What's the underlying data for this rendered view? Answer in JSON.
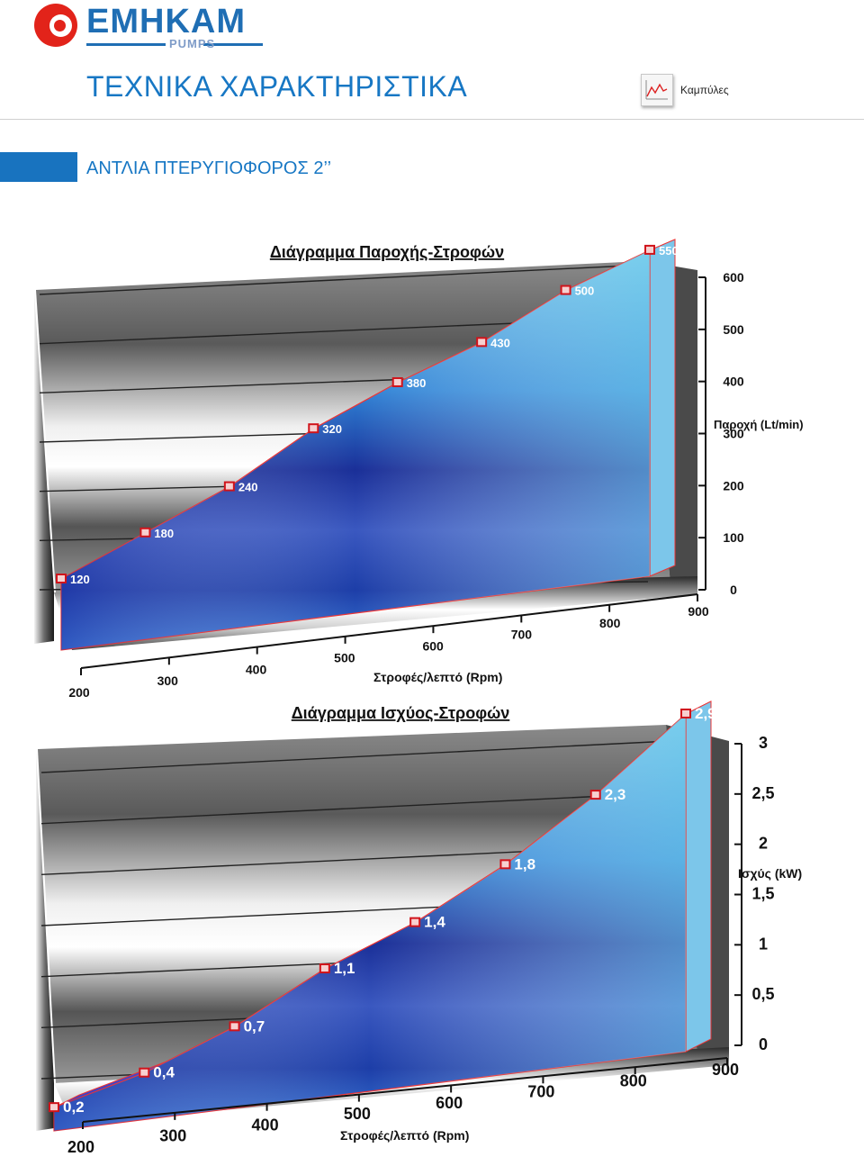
{
  "brand": {
    "name": "ΕΜΗΚΑΜ",
    "sub": "PUMPS",
    "red": "#e2231a",
    "blue": "#1f6eb4"
  },
  "header": {
    "title": "ΤΕΧΝΙΚΑ ΧΑΡΑΚΤΗΡΙΣΤΙΚΑ",
    "curves_label": "Καμπύλες",
    "curves_icon": "chart-icon"
  },
  "section": {
    "title": "ΑΝΤΛΙΑ ΠΤΕΡΥΓΙΟΦΟΡΟΣ 2’’"
  },
  "chart_data": [
    {
      "type": "area",
      "title": "Διάγραμμα Παροχής-Στροφών",
      "xlabel": "Στροφές/λεπτό (Rpm)",
      "ylabel": "Παροχή (Lt/min)",
      "x": [
        200,
        300,
        400,
        500,
        600,
        700,
        800,
        900
      ],
      "y": [
        120,
        180,
        240,
        320,
        380,
        430,
        500,
        550
      ],
      "data_labels": [
        "120",
        "180",
        "240",
        "320",
        "380",
        "430",
        "500",
        "550"
      ],
      "x_ticks": [
        "200",
        "300",
        "400",
        "500",
        "600",
        "700",
        "800",
        "900"
      ],
      "y_ticks": [
        "0",
        "100",
        "200",
        "300",
        "400",
        "500",
        "600"
      ],
      "ylim": [
        0,
        600
      ],
      "grid": true,
      "three_d": true
    },
    {
      "type": "area",
      "title": "Διάγραμμα Ισχύος-Στροφών",
      "xlabel": "Στροφές/λεπτό (Rpm)",
      "ylabel": "Ισχύς (kW)",
      "x": [
        200,
        300,
        400,
        500,
        600,
        700,
        800,
        900
      ],
      "y": [
        0.2,
        0.4,
        0.7,
        1.1,
        1.4,
        1.8,
        2.3,
        2.9
      ],
      "data_labels": [
        "0,2",
        "0,4",
        "0,7",
        "1,1",
        "1,4",
        "1,8",
        "2,3",
        "2,9"
      ],
      "x_ticks": [
        "200",
        "300",
        "400",
        "500",
        "600",
        "700",
        "800",
        "900"
      ],
      "y_ticks": [
        "0",
        "0,5",
        "1",
        "1,5",
        "2",
        "2,5",
        "3"
      ],
      "ylim": [
        0,
        3
      ],
      "grid": true,
      "three_d": true
    }
  ]
}
